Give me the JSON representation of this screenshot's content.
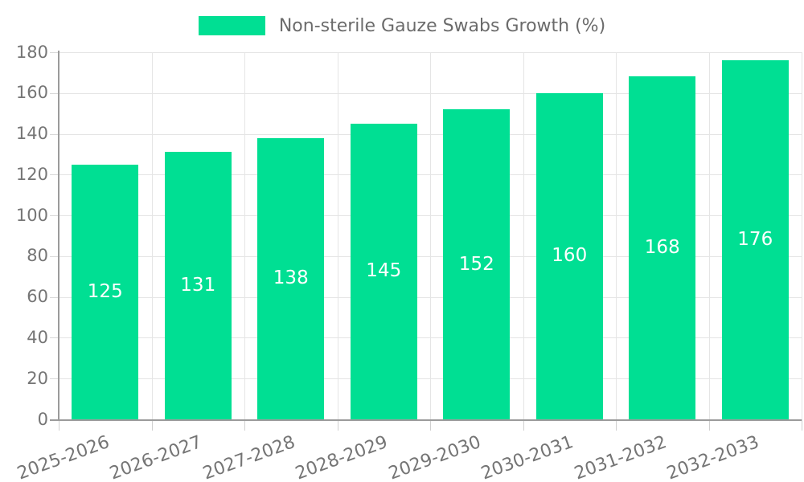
{
  "legend": {
    "label": "Non-sterile Gauze Swabs Growth (%)",
    "swatch_color": "#00DF93"
  },
  "chart_data": {
    "type": "bar",
    "title": "Non-sterile Gauze Swabs Growth (%)",
    "categories": [
      "2025-2026",
      "2026-2027",
      "2027-2028",
      "2028-2029",
      "2029-2030",
      "2030-2031",
      "2031-2032",
      "2032-2033"
    ],
    "values": [
      125,
      131,
      138,
      145,
      152,
      160,
      168,
      176
    ],
    "value_labels": [
      "125",
      "131",
      "138",
      "145",
      "152",
      "160",
      "168",
      "176"
    ],
    "xlabel": "",
    "ylabel": "",
    "ylim": [
      0,
      180
    ],
    "yticks": [
      "0",
      "20",
      "40",
      "60",
      "80",
      "100",
      "120",
      "140",
      "160",
      "180"
    ],
    "grid": true,
    "legend_position": "top",
    "bar_color": "#00DF93",
    "value_label_color": "#ffffff",
    "axis_text_color": "#757575",
    "grid_color": "#e5e5e5",
    "axis_line_color": "#9b9b9b"
  }
}
